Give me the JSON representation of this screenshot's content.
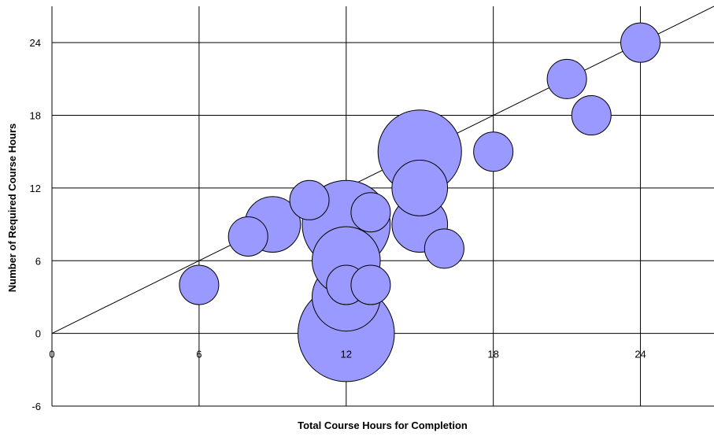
{
  "chart_data": {
    "type": "scatter",
    "subtype": "bubble",
    "title": "",
    "xlabel": "Total Course Hours for Completion",
    "ylabel": "Number of Required Course Hours",
    "xlim": [
      0,
      27
    ],
    "ylim": [
      -6,
      27
    ],
    "x_ticks": [
      0,
      6,
      12,
      18,
      24
    ],
    "y_ticks": [
      -6,
      0,
      6,
      12,
      18,
      24
    ],
    "grid": true,
    "legend": "none",
    "bubble_color": "#9999ff",
    "bubble_outline": "#000000",
    "reference_line": {
      "label": "",
      "points": [
        [
          0,
          0
        ],
        [
          27,
          27
        ]
      ]
    },
    "series": [
      {
        "points": [
          {
            "x": 6,
            "y": 4,
            "size": 1
          },
          {
            "x": 8,
            "y": 8,
            "size": 1
          },
          {
            "x": 9,
            "y": 9,
            "size": 2
          },
          {
            "x": 10.5,
            "y": 11,
            "size": 1
          },
          {
            "x": 12,
            "y": 0,
            "size": 6
          },
          {
            "x": 12,
            "y": 3,
            "size": 3
          },
          {
            "x": 12,
            "y": 4,
            "size": 1
          },
          {
            "x": 12,
            "y": 6,
            "size": 3
          },
          {
            "x": 12,
            "y": 9,
            "size": 5
          },
          {
            "x": 13,
            "y": 4,
            "size": 1
          },
          {
            "x": 13,
            "y": 10,
            "size": 1
          },
          {
            "x": 15,
            "y": 9,
            "size": 2
          },
          {
            "x": 15,
            "y": 12,
            "size": 2
          },
          {
            "x": 15,
            "y": 15,
            "size": 4.5
          },
          {
            "x": 16,
            "y": 7,
            "size": 1
          },
          {
            "x": 18,
            "y": 15,
            "size": 1
          },
          {
            "x": 21,
            "y": 21,
            "size": 1
          },
          {
            "x": 22,
            "y": 18,
            "size": 1
          },
          {
            "x": 24,
            "y": 24,
            "size": 1
          }
        ]
      }
    ]
  }
}
